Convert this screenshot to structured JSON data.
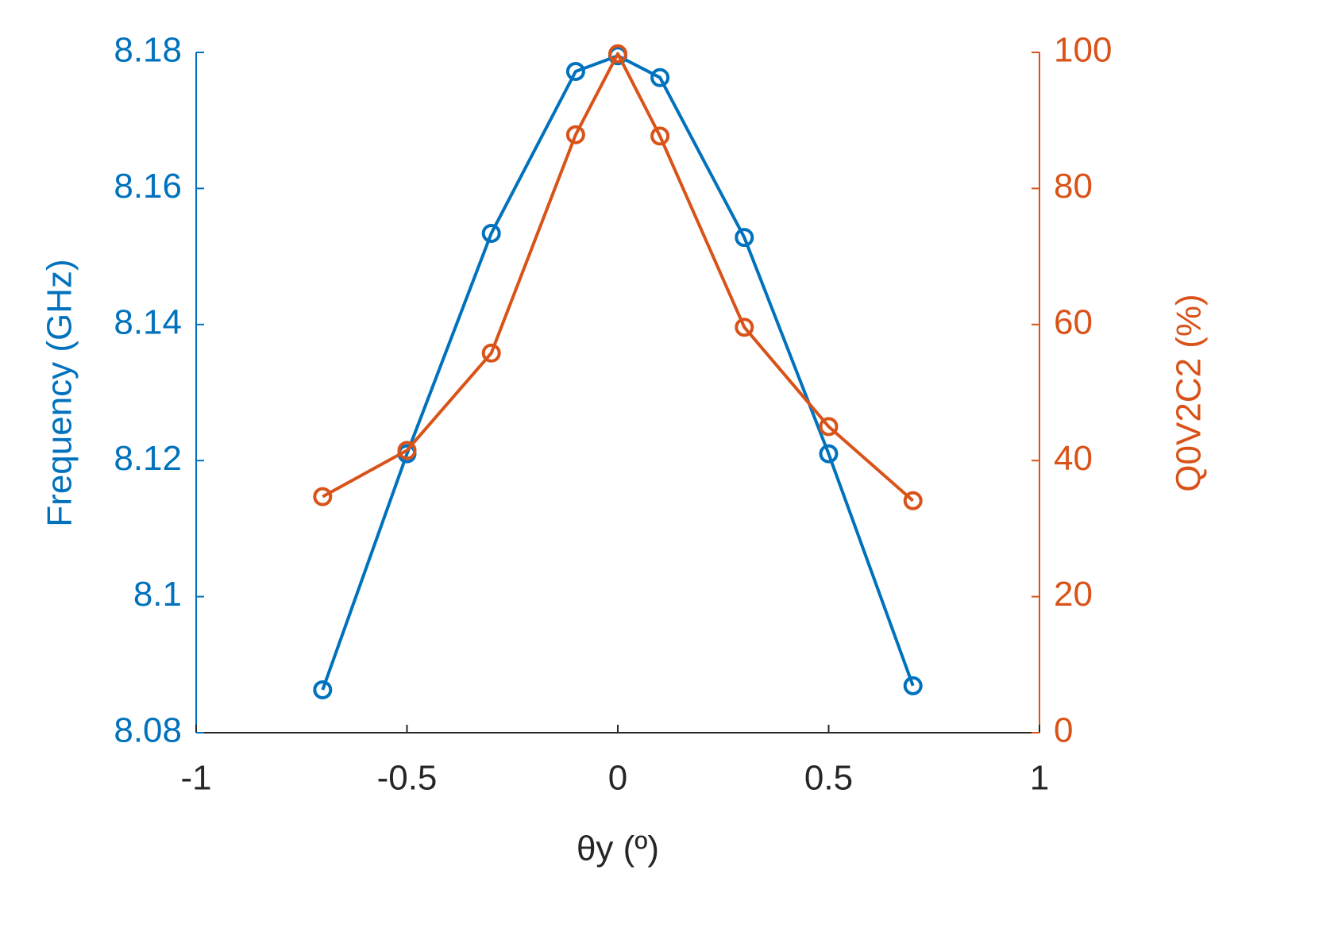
{
  "chart_data": {
    "type": "line",
    "xlabel": "θy (º)",
    "ylabel": "Frequency (GHz)",
    "y2label": "Q0V2C2 (%)",
    "x": [
      -0.7,
      -0.5,
      -0.3,
      -0.1,
      0,
      0.1,
      0.3,
      0.5,
      0.7
    ],
    "series": [
      {
        "name": "Frequency (GHz)",
        "color": "#0072bd",
        "axis": "y",
        "values": [
          8.0863,
          8.121,
          8.1534,
          8.1772,
          8.1795,
          8.1763,
          8.1528,
          8.121,
          8.0869
        ]
      },
      {
        "name": "Q0V2C2 (%)",
        "color": "#d95319",
        "axis": "y2",
        "values": [
          34.7,
          41.5,
          55.8,
          87.9,
          99.8,
          87.7,
          59.6,
          45.0,
          34.1
        ]
      }
    ],
    "xlim": [
      -1,
      1
    ],
    "xticks": [
      -1,
      -0.5,
      0,
      0.5,
      1
    ],
    "ylim": [
      8.08,
      8.18
    ],
    "yticks": [
      8.08,
      8.1,
      8.12,
      8.14,
      8.16,
      8.18
    ],
    "y2lim": [
      0,
      100
    ],
    "y2ticks": [
      0,
      20,
      40,
      60,
      80,
      100
    ],
    "grid": false
  }
}
